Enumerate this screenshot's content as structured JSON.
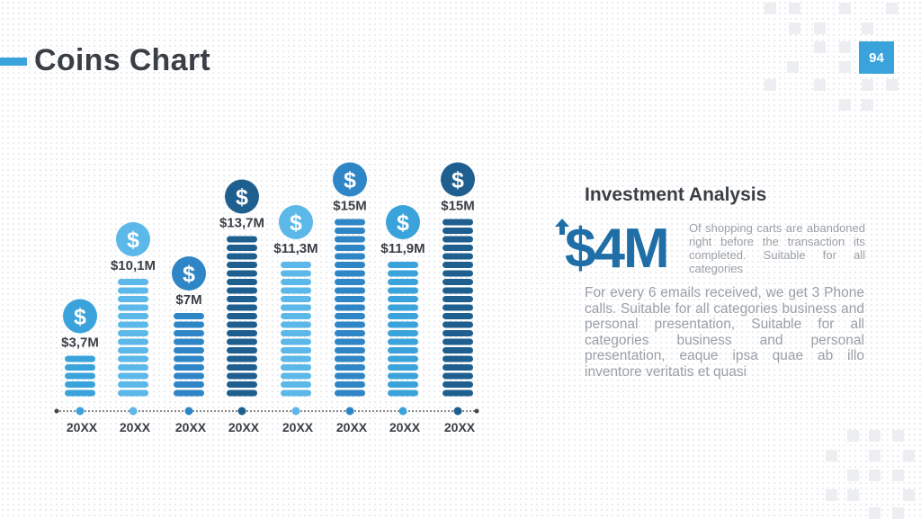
{
  "header": {
    "title": "Coins Chart",
    "page_number": "94"
  },
  "colors": {
    "accent": "#3aa3db",
    "light": "#5bb8e8",
    "mid": "#2f86c6",
    "dark": "#1f5f8f",
    "text": "#3a3f45",
    "muted": "#9aa0a6"
  },
  "chart_data": {
    "type": "bar",
    "categories": [
      "20XX",
      "20XX",
      "20XX",
      "20XX",
      "20XX",
      "20XX",
      "20XX",
      "20XX"
    ],
    "values": [
      3.7,
      10.1,
      7,
      13.7,
      11.3,
      15,
      11.9,
      15
    ],
    "value_labels": [
      "$3,7M",
      "$10,1M",
      "$7M",
      "$13,7M",
      "$11,3M",
      "$15M",
      "$11,9M",
      "$15M"
    ],
    "series_tones": [
      "accent",
      "light",
      "mid",
      "dark",
      "light",
      "mid",
      "accent",
      "dark"
    ],
    "icon": "dollar-coin-icon",
    "title": "",
    "xlabel": "",
    "ylabel": "",
    "ylim": [
      0,
      15
    ],
    "grid": false
  },
  "side": {
    "title": "Investment Analysis",
    "big_value": "$4M",
    "arrow_icon": "arrow-up-icon",
    "note": "Of shopping carts are abandoned right before the transaction its completed. Suitable for all categories",
    "body": "For every 6 emails received, we get 3 Phone calls. Suitable for all categories business and personal presentation, Suitable for all categories business and personal presentation, eaque ipsa quae ab illo inventore veritatis et quasi"
  }
}
